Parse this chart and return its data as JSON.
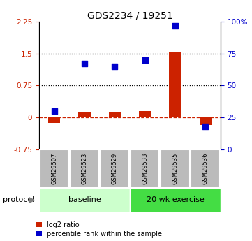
{
  "title": "GDS2234 / 19251",
  "samples": [
    "GSM29507",
    "GSM29523",
    "GSM29529",
    "GSM29533",
    "GSM29535",
    "GSM29536"
  ],
  "log2_ratio": [
    -0.12,
    0.12,
    0.13,
    0.15,
    1.55,
    -0.18
  ],
  "percentile_rank": [
    30,
    67,
    65,
    70,
    97,
    18
  ],
  "left_ylim": [
    -0.75,
    2.25
  ],
  "left_yticks": [
    -0.75,
    0,
    0.75,
    1.5,
    2.25
  ],
  "left_yticklabels": [
    "-0.75",
    "0",
    "0.75",
    "1.5",
    "2.25"
  ],
  "right_ylim": [
    0,
    100
  ],
  "right_yticks": [
    0,
    25,
    50,
    75,
    100
  ],
  "right_yticklabels": [
    "0",
    "25",
    "50",
    "75",
    "100%"
  ],
  "hlines": [
    0.75,
    1.5
  ],
  "zero_line": 0,
  "bar_color": "#cc2200",
  "dot_color": "#0000cc",
  "n_baseline": 3,
  "n_exercise": 3,
  "baseline_label": "baseline",
  "exercise_label": "20 wk exercise",
  "protocol_label": "protocol",
  "baseline_color": "#ccffcc",
  "exercise_color": "#44dd44",
  "sample_box_color": "#bbbbbb",
  "bar_width": 0.4,
  "dot_size": 28,
  "legend_red_label": "log2 ratio",
  "legend_blue_label": "percentile rank within the sample"
}
